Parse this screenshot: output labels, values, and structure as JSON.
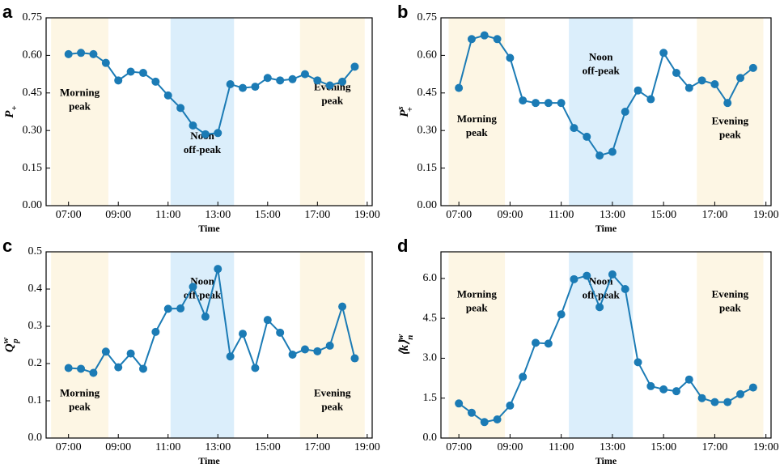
{
  "chart_data": [
    {
      "type": "line",
      "label": "a",
      "xlabel": "Time",
      "ylabel": {
        "main": "P",
        "sub": "+"
      },
      "x": [
        7,
        7.5,
        8,
        8.5,
        9,
        9.5,
        10,
        10.5,
        11,
        11.5,
        12,
        12.5,
        13,
        13.5,
        14,
        14.5,
        15,
        15.5,
        16,
        16.5,
        17,
        17.5,
        18,
        18.5
      ],
      "values": [
        0.605,
        0.61,
        0.605,
        0.57,
        0.5,
        0.535,
        0.53,
        0.495,
        0.44,
        0.39,
        0.32,
        0.285,
        0.29,
        0.485,
        0.47,
        0.475,
        0.51,
        0.5,
        0.505,
        0.525,
        0.5,
        0.48,
        0.495,
        0.555
      ],
      "color": "#1b7bb5",
      "xlim": [
        6.1,
        19.2
      ],
      "ylim": [
        0,
        0.75
      ],
      "xticks": [
        {
          "value": 7,
          "label": "07:00"
        },
        {
          "value": 9,
          "label": "09:00"
        },
        {
          "value": 11,
          "label": "11:00"
        },
        {
          "value": 13,
          "label": "13:00"
        },
        {
          "value": 15,
          "label": "15:00"
        },
        {
          "value": 17,
          "label": "17:00"
        },
        {
          "value": 19,
          "label": "19:00"
        }
      ],
      "yticks": [
        {
          "value": 0,
          "label": "0.00"
        },
        {
          "value": 0.15,
          "label": "0.15"
        },
        {
          "value": 0.3,
          "label": "0.30"
        },
        {
          "value": 0.45,
          "label": "0.45"
        },
        {
          "value": 0.6,
          "label": "0.60"
        },
        {
          "value": 0.75,
          "label": "0.75"
        }
      ],
      "regions": [
        {
          "label": [
            "Morning",
            "peak"
          ],
          "xlim": [
            6.3,
            8.6
          ],
          "color": "#fdf6e4"
        },
        {
          "label": [
            "Noon",
            "off-peak"
          ],
          "xlim": [
            11.1,
            13.65
          ],
          "color": "#dbeefb"
        },
        {
          "label": [
            "Evening",
            "peak"
          ],
          "xlim": [
            16.3,
            18.9
          ],
          "color": "#fdf6e4"
        }
      ]
    },
    {
      "type": "line",
      "label": "b",
      "xlabel": "Time",
      "ylabel": {
        "main": "P",
        "sub": "+",
        "sup": "s"
      },
      "x": [
        7,
        7.5,
        8,
        8.5,
        9,
        9.5,
        10,
        10.5,
        11,
        11.5,
        12,
        12.5,
        13,
        13.5,
        14,
        14.5,
        15,
        15.5,
        16,
        16.5,
        17,
        17.5,
        18,
        18.5
      ],
      "values": [
        0.47,
        0.665,
        0.68,
        0.665,
        0.59,
        0.42,
        0.41,
        0.41,
        0.41,
        0.31,
        0.275,
        0.2,
        0.215,
        0.375,
        0.46,
        0.425,
        0.61,
        0.53,
        0.47,
        0.5,
        0.485,
        0.41,
        0.51,
        0.55
      ],
      "color": "#1b7bb5",
      "xlim": [
        6.3,
        19.2
      ],
      "ylim": [
        0,
        0.75
      ],
      "xticks": [
        {
          "value": 7,
          "label": "07:00"
        },
        {
          "value": 9,
          "label": "09:00"
        },
        {
          "value": 11,
          "label": "11:00"
        },
        {
          "value": 13,
          "label": "13:00"
        },
        {
          "value": 15,
          "label": "15:00"
        },
        {
          "value": 17,
          "label": "17:00"
        },
        {
          "value": 19,
          "label": "19:00"
        }
      ],
      "yticks": [
        {
          "value": 0,
          "label": "0.00"
        },
        {
          "value": 0.15,
          "label": "0.15"
        },
        {
          "value": 0.3,
          "label": "0.30"
        },
        {
          "value": 0.45,
          "label": "0.45"
        },
        {
          "value": 0.6,
          "label": "0.60"
        },
        {
          "value": 0.75,
          "label": "0.75"
        }
      ],
      "regions": [
        {
          "label": [
            "Morning",
            "peak"
          ],
          "xlim": [
            6.6,
            8.8
          ],
          "color": "#fdf6e4"
        },
        {
          "label": [
            "Noon",
            "off-peak"
          ],
          "xlim": [
            11.3,
            13.8
          ],
          "color": "#dbeefb"
        },
        {
          "label": [
            "Evening",
            "peak"
          ],
          "xlim": [
            16.3,
            18.9
          ],
          "color": "#fdf6e4"
        }
      ]
    },
    {
      "type": "line",
      "label": "c",
      "xlabel": "Time",
      "ylabel": {
        "main": "Q",
        "sub": "p",
        "sup": "w"
      },
      "x": [
        7,
        7.5,
        8,
        8.5,
        9,
        9.5,
        10,
        10.5,
        11,
        11.5,
        12,
        12.5,
        13,
        13.5,
        14,
        14.5,
        15,
        15.5,
        16,
        16.5,
        17,
        17.5,
        18,
        18.5
      ],
      "values": [
        0.188,
        0.186,
        0.175,
        0.232,
        0.19,
        0.227,
        0.186,
        0.285,
        0.347,
        0.348,
        0.406,
        0.326,
        0.454,
        0.219,
        0.28,
        0.188,
        0.317,
        0.283,
        0.224,
        0.238,
        0.233,
        0.248,
        0.353,
        0.214
      ],
      "color": "#1b7bb5",
      "xlim": [
        6.1,
        19.2
      ],
      "ylim": [
        0,
        0.5
      ],
      "xticks": [
        {
          "value": 7,
          "label": "07:00"
        },
        {
          "value": 9,
          "label": "09:00"
        },
        {
          "value": 11,
          "label": "11:00"
        },
        {
          "value": 13,
          "label": "13:00"
        },
        {
          "value": 15,
          "label": "15:00"
        },
        {
          "value": 17,
          "label": "17:00"
        },
        {
          "value": 19,
          "label": "19:00"
        }
      ],
      "yticks": [
        {
          "value": 0,
          "label": "0.0"
        },
        0.1,
        0.2,
        0.3,
        0.4,
        0.5
      ],
      "regions": [
        {
          "label": [
            "Morning",
            "peak"
          ],
          "xlim": [
            6.3,
            8.6
          ],
          "color": "#fdf6e4"
        },
        {
          "label": [
            "Noon",
            "off-peak"
          ],
          "xlim": [
            11.1,
            13.65
          ],
          "color": "#dbeefb"
        },
        {
          "label": [
            "Evening",
            "peak"
          ],
          "xlim": [
            16.3,
            18.9
          ],
          "color": "#fdf6e4"
        }
      ]
    },
    {
      "type": "line",
      "label": "d",
      "xlabel": "Time",
      "ylabel": {
        "main": "⟨k⟩",
        "sub": "n",
        "sup": "w"
      },
      "x": [
        7,
        7.5,
        8,
        8.5,
        9,
        9.5,
        10,
        10.5,
        11,
        11.5,
        12,
        12.5,
        13,
        13.5,
        14,
        14.5,
        15,
        15.5,
        16,
        16.5,
        17,
        17.5,
        18,
        18.5
      ],
      "values": [
        1.3,
        0.95,
        0.6,
        0.7,
        1.22,
        2.3,
        3.58,
        3.55,
        4.65,
        5.97,
        6.1,
        4.92,
        6.15,
        5.6,
        2.85,
        1.95,
        1.83,
        1.76,
        2.2,
        1.5,
        1.35,
        1.35,
        1.65,
        1.9
      ],
      "color": "#1b7bb5",
      "xlim": [
        6.3,
        19.2
      ],
      "ylim": [
        0,
        7
      ],
      "xticks": [
        {
          "value": 7,
          "label": "07:00"
        },
        {
          "value": 9,
          "label": "09:00"
        },
        {
          "value": 11,
          "label": "11:00"
        },
        {
          "value": 13,
          "label": "13:00"
        },
        {
          "value": 15,
          "label": "15:00"
        },
        {
          "value": 17,
          "label": "17:00"
        },
        {
          "value": 19,
          "label": "19:00"
        }
      ],
      "yticks": [
        {
          "value": 0,
          "label": "0.0"
        },
        1.5,
        {
          "value": 3,
          "label": "3.0"
        },
        4.5,
        {
          "value": 6,
          "label": "6.0"
        }
      ],
      "regions": [
        {
          "label": [
            "Morning",
            "peak"
          ],
          "xlim": [
            6.6,
            8.8
          ],
          "color": "#fdf6e4"
        },
        {
          "label": [
            "Noon",
            "off-peak"
          ],
          "xlim": [
            11.3,
            13.8
          ],
          "color": "#dbeefb"
        },
        {
          "label": [
            "Evening",
            "peak"
          ],
          "xlim": [
            16.3,
            18.9
          ],
          "color": "#fdf6e4"
        }
      ]
    }
  ]
}
